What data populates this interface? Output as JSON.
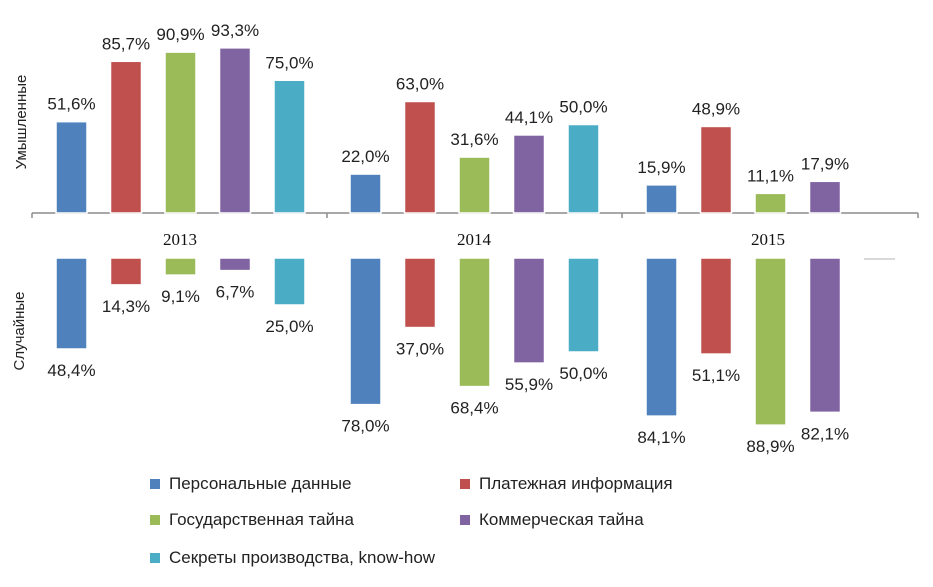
{
  "chart_data": {
    "type": "bar",
    "categories": [
      "2013",
      "2014",
      "2015"
    ],
    "upper_label": "Умышленные",
    "lower_label": "Случайные",
    "series": [
      {
        "name": "Персональные данные",
        "color": "#4f81bd",
        "intentional": [
          51.6,
          22.0,
          15.9
        ],
        "accidental": [
          48.4,
          78.0,
          84.1
        ],
        "intentional_labels": [
          "51,6%",
          "22,0%",
          "15,9%"
        ],
        "accidental_labels": [
          "48,4%",
          "78,0%",
          "84,1%"
        ]
      },
      {
        "name": "Платежная информация",
        "color": "#c0504d",
        "intentional": [
          85.7,
          63.0,
          48.9
        ],
        "accidental": [
          14.3,
          37.0,
          51.1
        ],
        "intentional_labels": [
          "85,7%",
          "63,0%",
          "48,9%"
        ],
        "accidental_labels": [
          "14,3%",
          "37,0%",
          "51,1%"
        ]
      },
      {
        "name": "Государственная тайна",
        "color": "#9bbb59",
        "intentional": [
          90.9,
          31.6,
          11.1
        ],
        "accidental": [
          9.1,
          68.4,
          88.9
        ],
        "intentional_labels": [
          "90,9%",
          "31,6%",
          "11,1%"
        ],
        "accidental_labels": [
          "9,1%",
          "68,4%",
          "88,9%"
        ]
      },
      {
        "name": "Коммерческая тайна",
        "color": "#8064a2",
        "intentional": [
          93.3,
          44.1,
          17.9
        ],
        "accidental": [
          6.7,
          55.9,
          82.1
        ],
        "intentional_labels": [
          "93,3%",
          "44,1%",
          "17,9%"
        ],
        "accidental_labels": [
          "6,7%",
          "55,9%",
          "82,1%"
        ]
      },
      {
        "name": "Секреты производства, know-how",
        "color": "#4bacc6",
        "intentional": [
          75.0,
          50.0,
          0
        ],
        "accidental": [
          25.0,
          50.0,
          0
        ],
        "intentional_labels": [
          "75,0%",
          "50,0%",
          ""
        ],
        "accidental_labels": [
          "25,0%",
          "50,0%",
          ""
        ]
      }
    ],
    "ylim": [
      0,
      100
    ],
    "legend_position": "bottom"
  }
}
